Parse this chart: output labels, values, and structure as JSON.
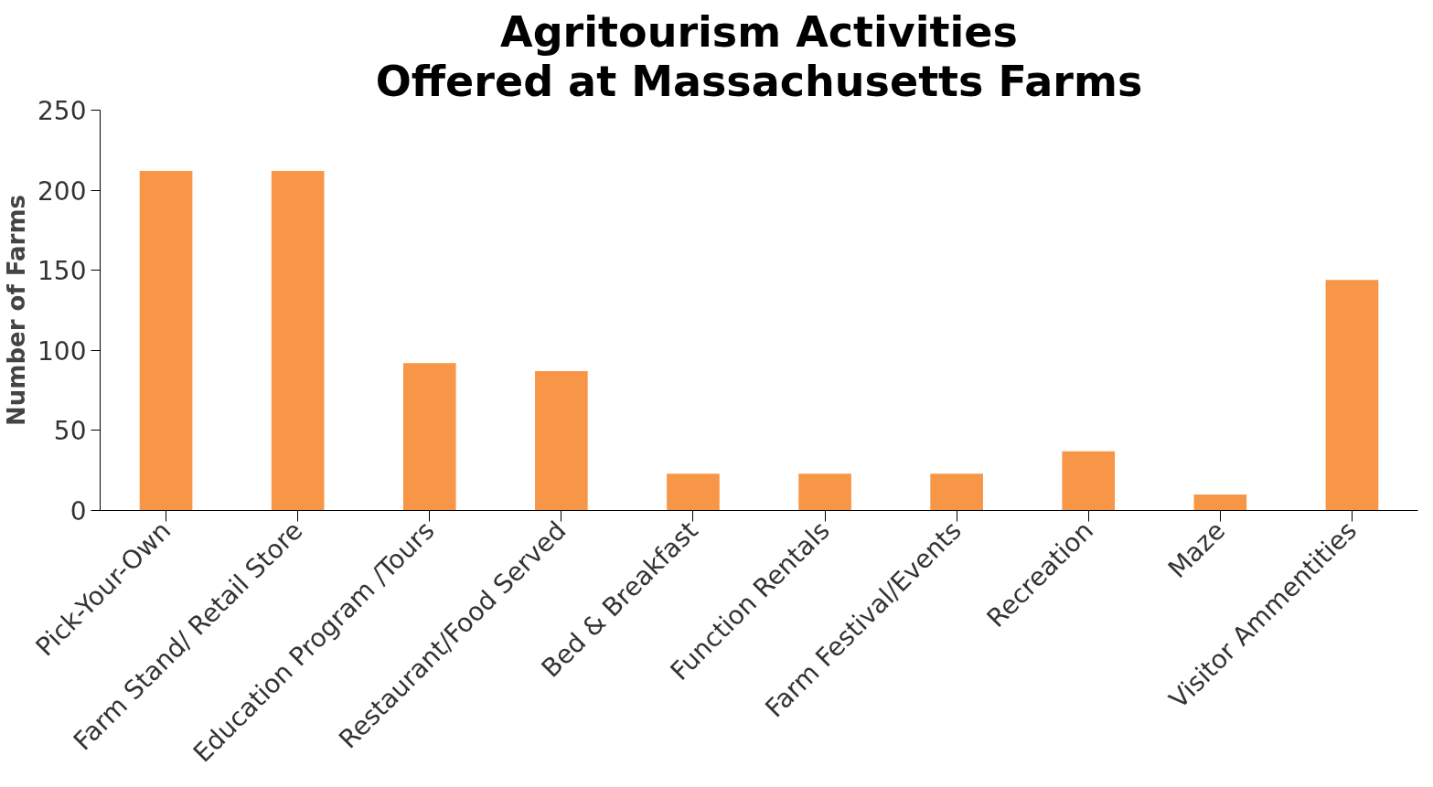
{
  "chart_data": {
    "type": "bar",
    "title": "Agritourism Activities Offered at Massachusetts Farms",
    "ylabel": "Number of Farms",
    "categories": [
      "Pick-Your-Own",
      "Farm Stand/ Retail Store",
      "Education Program /Tours",
      "Restaurant/Food Served",
      "Bed & Breakfast",
      "Function Rentals",
      "Farm Festival/Events",
      "Recreation",
      "Maze",
      "Visitor Ammentities"
    ],
    "values": [
      212,
      212,
      92,
      87,
      23,
      23,
      23,
      37,
      10,
      144
    ],
    "color": "#f79646",
    "ylim": [
      0,
      250
    ],
    "yticks": [
      0,
      50,
      100,
      150,
      200,
      250
    ],
    "grid": false
  }
}
